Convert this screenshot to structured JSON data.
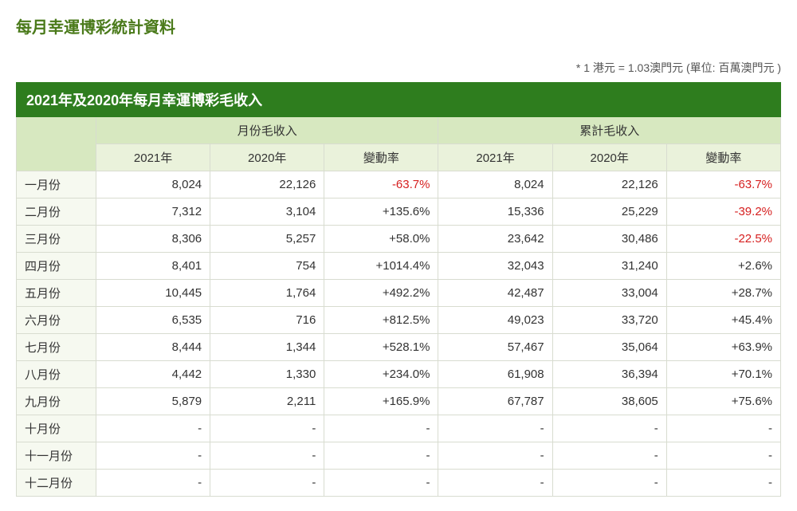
{
  "page_title": "每月幸運博彩統計資料",
  "unit_note": "* 1 港元 = 1.03澳門元 (單位: 百萬澳門元  )",
  "table_title": "2021年及2020年每月幸運博彩毛收入",
  "group_headers": {
    "monthly": "月份毛收入",
    "cumulative": "累計毛收入"
  },
  "year_headers": {
    "y2021": "2021年",
    "y2020": "2020年",
    "change": "變動率"
  },
  "months": [
    "一月份",
    "二月份",
    "三月份",
    "四月份",
    "五月份",
    "六月份",
    "七月份",
    "八月份",
    "九月份",
    "十月份",
    "十一月份",
    "十二月份"
  ],
  "rows": [
    {
      "m2021": "8,024",
      "m2020": "22,126",
      "mchg": "-63.7%",
      "mneg": true,
      "c2021": "8,024",
      "c2020": "22,126",
      "cchg": "-63.7%",
      "cneg": true
    },
    {
      "m2021": "7,312",
      "m2020": "3,104",
      "mchg": "+135.6%",
      "mneg": false,
      "c2021": "15,336",
      "c2020": "25,229",
      "cchg": "-39.2%",
      "cneg": true
    },
    {
      "m2021": "8,306",
      "m2020": "5,257",
      "mchg": "+58.0%",
      "mneg": false,
      "c2021": "23,642",
      "c2020": "30,486",
      "cchg": "-22.5%",
      "cneg": true
    },
    {
      "m2021": "8,401",
      "m2020": "754",
      "mchg": "+1014.4%",
      "mneg": false,
      "c2021": "32,043",
      "c2020": "31,240",
      "cchg": "+2.6%",
      "cneg": false
    },
    {
      "m2021": "10,445",
      "m2020": "1,764",
      "mchg": "+492.2%",
      "mneg": false,
      "c2021": "42,487",
      "c2020": "33,004",
      "cchg": "+28.7%",
      "cneg": false
    },
    {
      "m2021": "6,535",
      "m2020": "716",
      "mchg": "+812.5%",
      "mneg": false,
      "c2021": "49,023",
      "c2020": "33,720",
      "cchg": "+45.4%",
      "cneg": false
    },
    {
      "m2021": "8,444",
      "m2020": "1,344",
      "mchg": "+528.1%",
      "mneg": false,
      "c2021": "57,467",
      "c2020": "35,064",
      "cchg": "+63.9%",
      "cneg": false
    },
    {
      "m2021": "4,442",
      "m2020": "1,330",
      "mchg": "+234.0%",
      "mneg": false,
      "c2021": "61,908",
      "c2020": "36,394",
      "cchg": "+70.1%",
      "cneg": false
    },
    {
      "m2021": "5,879",
      "m2020": "2,211",
      "mchg": "+165.9%",
      "mneg": false,
      "c2021": "67,787",
      "c2020": "38,605",
      "cchg": "+75.6%",
      "cneg": false
    },
    {
      "m2021": "-",
      "m2020": "-",
      "mchg": "-",
      "mneg": false,
      "c2021": "-",
      "c2020": "-",
      "cchg": "-",
      "cneg": false
    },
    {
      "m2021": "-",
      "m2020": "-",
      "mchg": "-",
      "mneg": false,
      "c2021": "-",
      "c2020": "-",
      "cchg": "-",
      "cneg": false
    },
    {
      "m2021": "-",
      "m2020": "-",
      "mchg": "-",
      "mneg": false,
      "c2021": "-",
      "c2020": "-",
      "cchg": "-",
      "cneg": false
    }
  ],
  "styling": {
    "title_color": "#4a7a1a",
    "title_bar_bg": "#2e7d1e",
    "group_header_bg": "#d7e8c0",
    "year_header_bg": "#eaf2db",
    "row_label_bg": "#f6f9f0",
    "border_color": "#d8dcd0",
    "negative_color": "#d62020",
    "text_color": "#333333",
    "font_size_title": 20,
    "font_size_table_title": 18,
    "font_size_cell": 15
  }
}
